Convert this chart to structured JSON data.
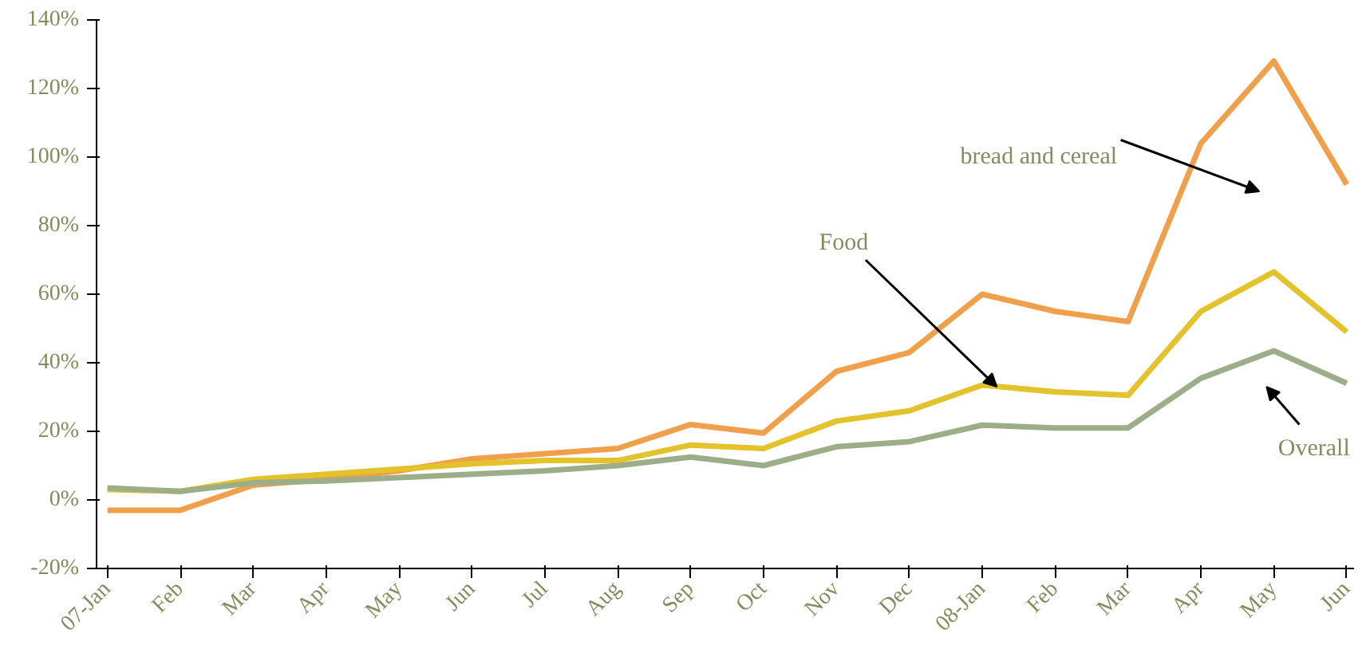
{
  "chart_data": {
    "type": "line",
    "categories": [
      "07-Jan",
      "Feb",
      "Mar",
      "Apr",
      "May",
      "Jun",
      "Jul",
      "Aug",
      "Sep",
      "Oct",
      "Nov",
      "Dec",
      "08-Jan",
      "Feb",
      "Mar",
      "Apr",
      "May",
      "Jun"
    ],
    "series": [
      {
        "name": "bread and cereal",
        "color": "#f0a04b",
        "values": [
          -3,
          -3,
          4.3,
          6,
          8.5,
          12,
          13.5,
          15,
          22,
          19.5,
          37.5,
          43,
          60,
          55,
          52,
          104,
          128,
          92
        ]
      },
      {
        "name": "Food",
        "color": "#e3c22b",
        "values": [
          3,
          2.5,
          6,
          7.5,
          9,
          10.5,
          11.5,
          11.5,
          16,
          15,
          23,
          26,
          33.5,
          31.5,
          30.5,
          55,
          66.5,
          49
        ]
      },
      {
        "name": "Overall",
        "color": "#9cae88",
        "values": [
          3.5,
          2.5,
          5,
          5.5,
          6.5,
          7.5,
          8.5,
          10,
          12.5,
          10,
          15.5,
          17,
          21.8,
          21,
          21,
          35.5,
          43.5,
          34
        ]
      }
    ],
    "ylim": [
      -20,
      140
    ],
    "yticks": [
      {
        "value": -20,
        "label": "-20%"
      },
      {
        "value": 0,
        "label": "0%"
      },
      {
        "value": 20,
        "label": "20%"
      },
      {
        "value": 40,
        "label": "40%"
      },
      {
        "value": 60,
        "label": "60%"
      },
      {
        "value": 80,
        "label": "80%"
      },
      {
        "value": 100,
        "label": "100%"
      },
      {
        "value": 120,
        "label": "120%"
      },
      {
        "value": 140,
        "label": "140%"
      }
    ],
    "grid": false,
    "legend": false,
    "marker": "none",
    "line_style": "solid"
  }
}
